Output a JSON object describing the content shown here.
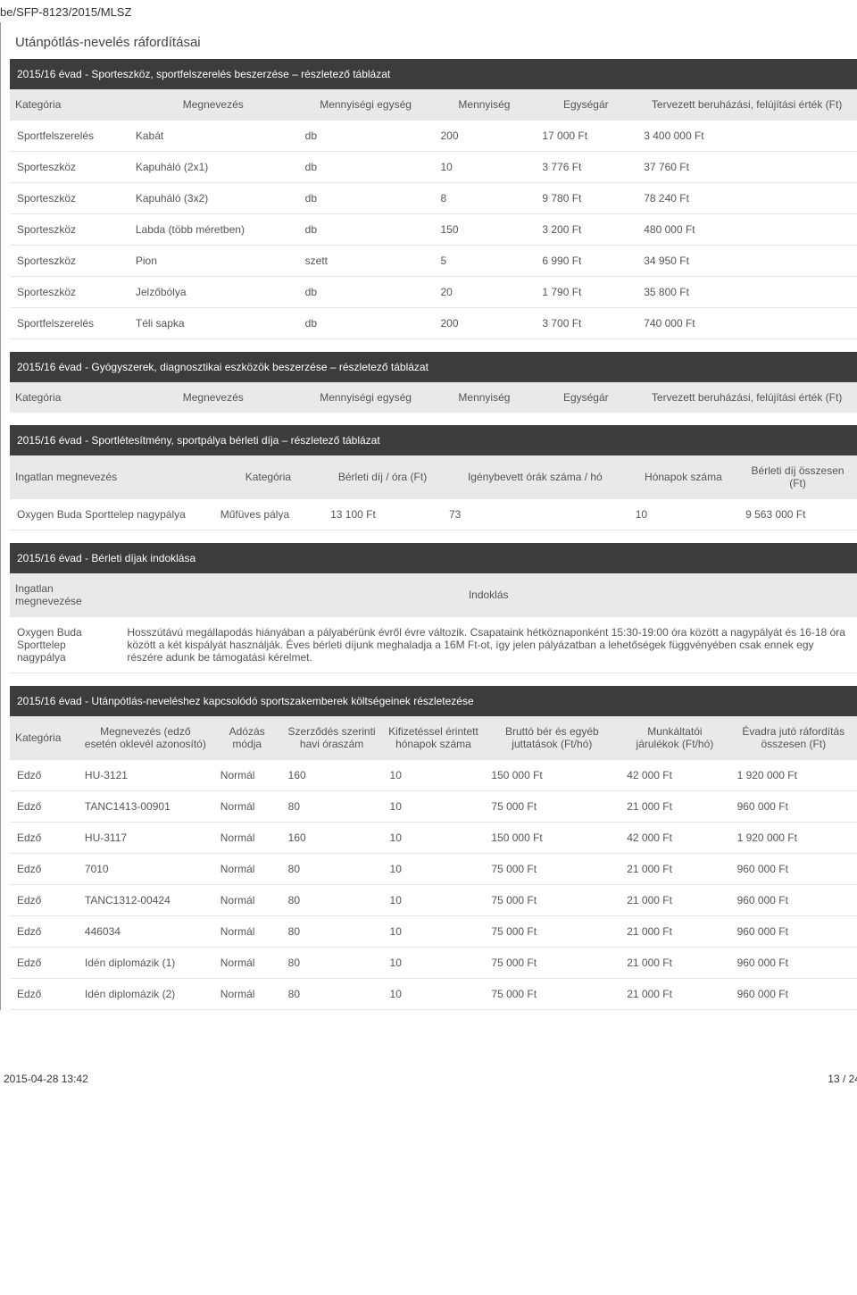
{
  "doc_id": "be/SFP-8123/2015/MLSZ",
  "section_title": "Utánpótlás-nevelés ráfordításai",
  "table1": {
    "title": "2015/16 évad - Sporteszköz, sportfelszerelés beszerzése – részletező táblázat",
    "headers": [
      "Kategória",
      "Megnevezés",
      "Mennyiségi egység",
      "Mennyiség",
      "Egységár",
      "Tervezett beruházási, felújítási érték (Ft)"
    ],
    "rows": [
      [
        "Sportfelszerelés",
        "Kabát",
        "db",
        "200",
        "17 000 Ft",
        "3 400 000 Ft"
      ],
      [
        "Sporteszköz",
        "Kapuháló (2x1)",
        "db",
        "10",
        "3 776 Ft",
        "37 760 Ft"
      ],
      [
        "Sporteszköz",
        "Kapuháló (3x2)",
        "db",
        "8",
        "9 780 Ft",
        "78 240 Ft"
      ],
      [
        "Sporteszköz",
        "Labda (több méretben)",
        "db",
        "150",
        "3 200 Ft",
        "480 000 Ft"
      ],
      [
        "Sporteszköz",
        "Pion",
        "szett",
        "5",
        "6 990 Ft",
        "34 950 Ft"
      ],
      [
        "Sporteszköz",
        "Jelzőbólya",
        "db",
        "20",
        "1 790 Ft",
        "35 800 Ft"
      ],
      [
        "Sportfelszerelés",
        "Téli sapka",
        "db",
        "200",
        "3 700 Ft",
        "740 000 Ft"
      ]
    ]
  },
  "table2": {
    "title": "2015/16 évad - Gyógyszerek, diagnosztikai eszközök beszerzése – részletező táblázat",
    "headers": [
      "Kategória",
      "Megnevezés",
      "Mennyiségi egység",
      "Mennyiség",
      "Egységár",
      "Tervezett beruházási, felújítási érték (Ft)"
    ]
  },
  "table3": {
    "title": "2015/16 évad - Sportlétesítmény, sportpálya bérleti díja – részletező táblázat",
    "headers": [
      "Ingatlan megnevezés",
      "Kategória",
      "Bérleti díj / óra (Ft)",
      "Igénybevett órák száma / hó",
      "Hónapok száma",
      "Bérleti díj összesen (Ft)"
    ],
    "rows": [
      [
        "Oxygen Buda Sporttelep nagypálya",
        "Műfüves pálya",
        "13 100 Ft",
        "73",
        "10",
        "9 563 000 Ft"
      ]
    ]
  },
  "table4": {
    "title": "2015/16 évad - Bérleti díjak indoklása",
    "headers": [
      "Ingatlan megnevezése",
      "Indoklás"
    ],
    "rows": [
      [
        "Oxygen Buda Sporttelep nagypálya",
        "Hosszútávú megállapodás hiányában a pályabérünk évről évre változik. Csapataink hétköznaponként 15:30-19:00 óra között a nagypályát és 16-18 óra között a két kispályát használják. Éves bérleti díjunk meghaladja a 16M Ft-ot, így jelen pályázatban a lehetőségek függvényében csak ennek egy részére adunk be támogatási kérelmet."
      ]
    ]
  },
  "table5": {
    "title": "2015/16 évad - Utánpótlás-neveléshez kapcsolódó sportszakemberek költségeinek részletezése",
    "headers": [
      "Kategória",
      "Megnevezés (edző esetén oklevél azonosító)",
      "Adózás módja",
      "Szerződés szerinti havi óraszám",
      "Kifizetéssel érintett hónapok száma",
      "Bruttó bér és egyéb juttatások (Ft/hó)",
      "Munkáltatói járulékok (Ft/hó)",
      "Évadra jutó ráfordítás összesen (Ft)"
    ],
    "rows": [
      [
        "Edző",
        "HU-3121",
        "Normál",
        "160",
        "10",
        "150 000 Ft",
        "42 000 Ft",
        "1 920 000 Ft"
      ],
      [
        "Edző",
        "TANC1413-00901",
        "Normál",
        "80",
        "10",
        "75 000 Ft",
        "21 000 Ft",
        "960 000 Ft"
      ],
      [
        "Edző",
        "HU-3117",
        "Normál",
        "160",
        "10",
        "150 000 Ft",
        "42 000 Ft",
        "1 920 000 Ft"
      ],
      [
        "Edző",
        "7010",
        "Normál",
        "80",
        "10",
        "75 000 Ft",
        "21 000 Ft",
        "960 000 Ft"
      ],
      [
        "Edző",
        "TANC1312-00424",
        "Normál",
        "80",
        "10",
        "75 000 Ft",
        "21 000 Ft",
        "960 000 Ft"
      ],
      [
        "Edző",
        "446034",
        "Normál",
        "80",
        "10",
        "75 000 Ft",
        "21 000 Ft",
        "960 000 Ft"
      ],
      [
        "Edző",
        "Idén diplomázik (1)",
        "Normál",
        "80",
        "10",
        "75 000 Ft",
        "21 000 Ft",
        "960 000 Ft"
      ],
      [
        "Edző",
        "Idén diplomázik (2)",
        "Normál",
        "80",
        "10",
        "75 000 Ft",
        "21 000 Ft",
        "960 000 Ft"
      ]
    ]
  },
  "footer": {
    "date": "2015-04-28 13:42",
    "page": "13 / 24"
  },
  "colwidths": {
    "t1": [
      "14%",
      "20%",
      "16%",
      "12%",
      "12%",
      "26%"
    ],
    "t3": [
      "24%",
      "13%",
      "14%",
      "22%",
      "13%",
      "14%"
    ],
    "t4": [
      "13%",
      "87%"
    ],
    "t5": [
      "8%",
      "16%",
      "8%",
      "12%",
      "12%",
      "16%",
      "13%",
      "15%"
    ]
  }
}
